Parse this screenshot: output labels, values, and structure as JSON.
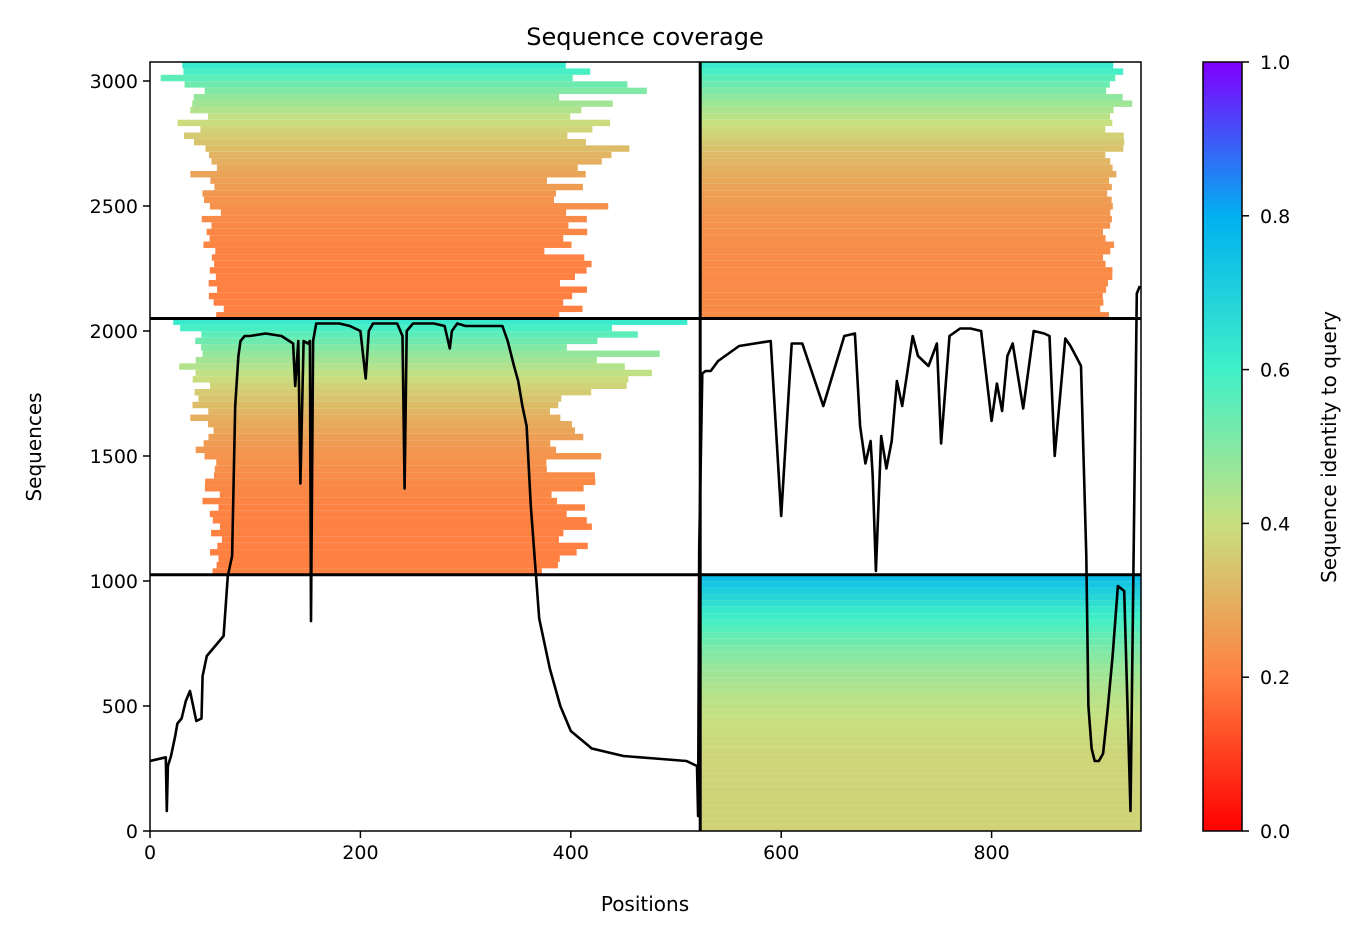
{
  "chart_data": {
    "type": "heatmap",
    "title": "Sequence coverage",
    "xlabel": "Positions",
    "ylabel": "Sequences",
    "xlim": [
      0,
      942
    ],
    "ylim": [
      0,
      3076
    ],
    "x_ticks": [
      0,
      200,
      400,
      600,
      800
    ],
    "y_ticks": [
      0,
      500,
      1000,
      1500,
      2000,
      2500,
      3000
    ],
    "colorbar": {
      "label": "Sequence identity to query",
      "range": [
        0,
        1
      ],
      "ticks": [
        "0.0",
        "0.2",
        "0.4",
        "0.6",
        "0.8",
        "1.0"
      ],
      "colormap": "rainbow_r",
      "stops": [
        "#ff0000",
        "#ff8040",
        "#c8e080",
        "#40f0c8",
        "#00b0f0",
        "#8000ff"
      ]
    },
    "divider_lines": {
      "vertical_x": [
        523
      ],
      "horizontal_y": [
        1025,
        2050
      ]
    },
    "blocks": [
      {
        "name": "lower-left",
        "x_range": [
          0,
          523
        ],
        "y_range": [
          0,
          1025
        ],
        "fill": "none"
      },
      {
        "name": "lower-right",
        "x_range": [
          523,
          942
        ],
        "y_range": [
          0,
          1025
        ],
        "identity_bottom": 0.37,
        "identity_top": 0.76
      },
      {
        "name": "middle-left",
        "x_range": [
          0,
          523
        ],
        "y_range": [
          1025,
          2050
        ],
        "core_x": [
          80,
          360
        ],
        "identity_bottom": 0.2,
        "identity_top": 0.62
      },
      {
        "name": "middle-right",
        "x_range": [
          523,
          942
        ],
        "y_range": [
          1025,
          2050
        ],
        "fill": "none"
      },
      {
        "name": "upper-left",
        "x_range": [
          0,
          523
        ],
        "y_range": [
          2050,
          3076
        ],
        "core_x": [
          84,
          358
        ],
        "identity_bottom": 0.2,
        "identity_top": 0.62
      },
      {
        "name": "upper-right",
        "x_range": [
          523,
          942
        ],
        "y_range": [
          2050,
          3076
        ],
        "core_x": [
          523,
          900
        ],
        "identity_bottom": 0.22,
        "identity_top": 0.62
      }
    ],
    "coverage_line": {
      "color": "#000000",
      "x": [
        0,
        15,
        16,
        17,
        20,
        24,
        26,
        28,
        30,
        34,
        38,
        44,
        49,
        50,
        54,
        56,
        62,
        70,
        74,
        78,
        81,
        84,
        86,
        90,
        95,
        110,
        125,
        136,
        138,
        141,
        143,
        146,
        150,
        152,
        153,
        155,
        158,
        163,
        170,
        180,
        190,
        200,
        205,
        208,
        212,
        220,
        235,
        240,
        242,
        244,
        250,
        258,
        270,
        280,
        285,
        287,
        292,
        300,
        320,
        335,
        340,
        346,
        350,
        354,
        358,
        362,
        370,
        380,
        390,
        400,
        420,
        450,
        480,
        510,
        520,
        521,
        522,
        525,
        528,
        533,
        540,
        560,
        590,
        600,
        610,
        620,
        640,
        660,
        670,
        675,
        680,
        685,
        687,
        690,
        695,
        700,
        705,
        710,
        715,
        720,
        725,
        730,
        740,
        748,
        752,
        760,
        770,
        780,
        790,
        800,
        805,
        810,
        815,
        820,
        830,
        840,
        850,
        855,
        860,
        870,
        875,
        880,
        885,
        890,
        892,
        895,
        898,
        902,
        906,
        910,
        915,
        920,
        926,
        932,
        938,
        941
      ],
      "y": [
        280,
        295,
        80,
        260,
        300,
        380,
        430,
        440,
        450,
        520,
        560,
        440,
        450,
        620,
        700,
        710,
        740,
        780,
        1020,
        1100,
        1700,
        1900,
        1960,
        1980,
        1980,
        1990,
        1980,
        1950,
        1780,
        1960,
        1390,
        1960,
        1950,
        1960,
        840,
        1960,
        2030,
        2030,
        2030,
        2030,
        2020,
        2000,
        1810,
        2000,
        2030,
        2030,
        2030,
        1980,
        1370,
        2000,
        2030,
        2030,
        2030,
        2020,
        1930,
        2000,
        2030,
        2020,
        2020,
        2020,
        1960,
        1860,
        1800,
        1700,
        1620,
        1300,
        850,
        650,
        500,
        400,
        330,
        300,
        290,
        280,
        260,
        60,
        1130,
        1830,
        1840,
        1840,
        1880,
        1940,
        1960,
        1260,
        1950,
        1950,
        1700,
        1980,
        1990,
        1620,
        1470,
        1560,
        1420,
        1040,
        1580,
        1450,
        1560,
        1800,
        1700,
        1840,
        1980,
        1900,
        1860,
        1950,
        1550,
        1980,
        2010,
        2010,
        2000,
        1640,
        1790,
        1680,
        1900,
        1950,
        1690,
        2000,
        1990,
        1980,
        1500,
        1970,
        1940,
        1900,
        1860,
        1100,
        500,
        330,
        280,
        280,
        310,
        470,
        700,
        980,
        960,
        80,
        2150,
        2180
      ]
    }
  }
}
